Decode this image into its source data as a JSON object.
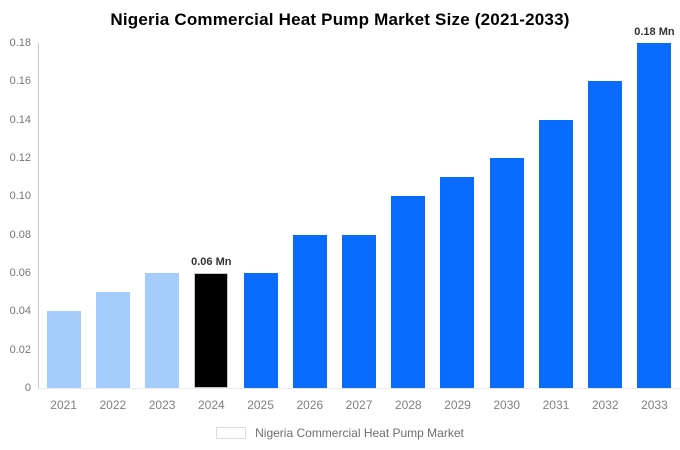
{
  "title": "Nigeria Commercial Heat Pump Market Size (2021-2033)",
  "chart_data": {
    "type": "bar",
    "title": "Nigeria Commercial Heat Pump Market Size (2021-2033)",
    "categories": [
      "2021",
      "2022",
      "2023",
      "2024",
      "2025",
      "2026",
      "2027",
      "2028",
      "2029",
      "2030",
      "2031",
      "2032",
      "2033"
    ],
    "series": [
      {
        "name": "Nigeria Commercial Heat Pump Market",
        "values": [
          0.04,
          0.05,
          0.06,
          0.06,
          0.06,
          0.08,
          0.08,
          0.1,
          0.11,
          0.12,
          0.14,
          0.16,
          0.18
        ],
        "colors": [
          "#a4cdfb",
          "#a4cdfb",
          "#a4cdfb",
          "#000000",
          "#0a6cff",
          "#0a6cff",
          "#0a6cff",
          "#0a6cff",
          "#0a6cff",
          "#0a6cff",
          "#0a6cff",
          "#0a6cff",
          "#0a6cff"
        ]
      }
    ],
    "unit": "Mn",
    "xlabel": "",
    "ylabel": "",
    "ylim": [
      0,
      0.18
    ],
    "yticks": [
      {
        "value": 0,
        "label": "0"
      },
      {
        "value": 0.02,
        "label": "0.02"
      },
      {
        "value": 0.04,
        "label": "0.04"
      },
      {
        "value": 0.06,
        "label": "0.06"
      },
      {
        "value": 0.08,
        "label": "0.08"
      },
      {
        "value": 0.1,
        "label": "0.10"
      },
      {
        "value": 0.12,
        "label": "0.12"
      },
      {
        "value": 0.14,
        "label": "0.14"
      },
      {
        "value": 0.16,
        "label": "0.16"
      },
      {
        "value": 0.18,
        "label": "0.18"
      }
    ],
    "annotations": [
      {
        "index": 3,
        "text": "0.06 Mn"
      },
      {
        "index": 12,
        "text": "0.18 Mn"
      }
    ],
    "grid": false,
    "legend_position": "bottom"
  },
  "legend": {
    "label": "Nigeria Commercial Heat Pump Market",
    "swatch_color": "#a4cdfb"
  },
  "colors": {
    "bar_default": "#0a6cff",
    "bar_past": "#a4cdfb",
    "bar_highlight": "#000000",
    "title_text": "#000000",
    "axis_text": "#757575",
    "annotation_text": "#333333",
    "axis_line": "#cccccc"
  }
}
